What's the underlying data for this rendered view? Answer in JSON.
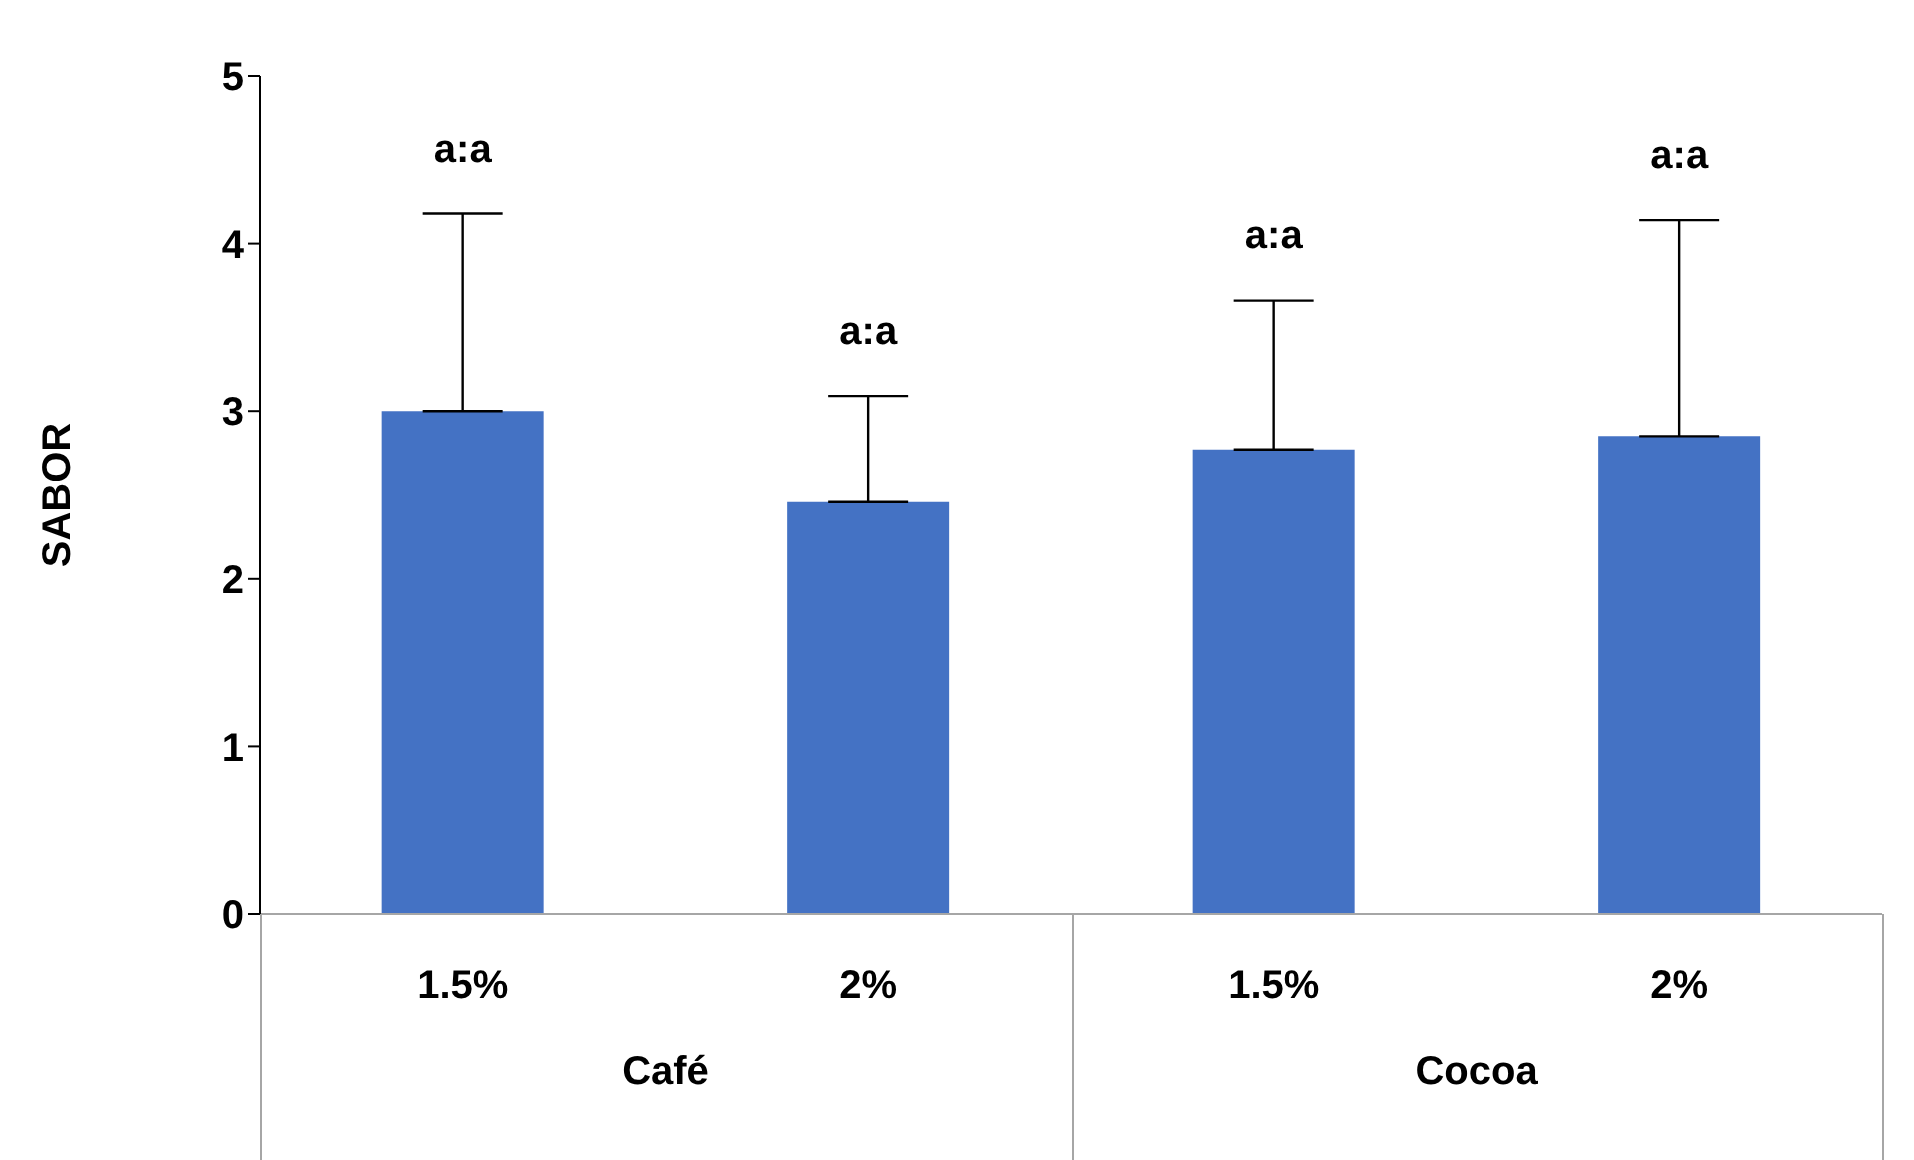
{
  "chart_data": {
    "type": "bar",
    "ylabel": "SABOR",
    "categories": [
      "1.5%",
      "2%",
      "1.5%",
      "2%"
    ],
    "values": [
      3.0,
      2.46,
      2.77,
      2.85
    ],
    "color": "#4472c4",
    "errors": [
      [
        3.0,
        4.18
      ],
      [
        2.46,
        3.09
      ],
      [
        2.77,
        3.66
      ],
      [
        2.85,
        4.14
      ]
    ],
    "annotations": [
      "a:a",
      "a:a",
      "a:a",
      "a:a",
      "Café",
      "Cocoa"
    ],
    "ylim": [
      0,
      5
    ],
    "yticks": [
      0,
      1,
      2,
      3,
      4,
      5
    ],
    "grid": false,
    "legend": false
  }
}
